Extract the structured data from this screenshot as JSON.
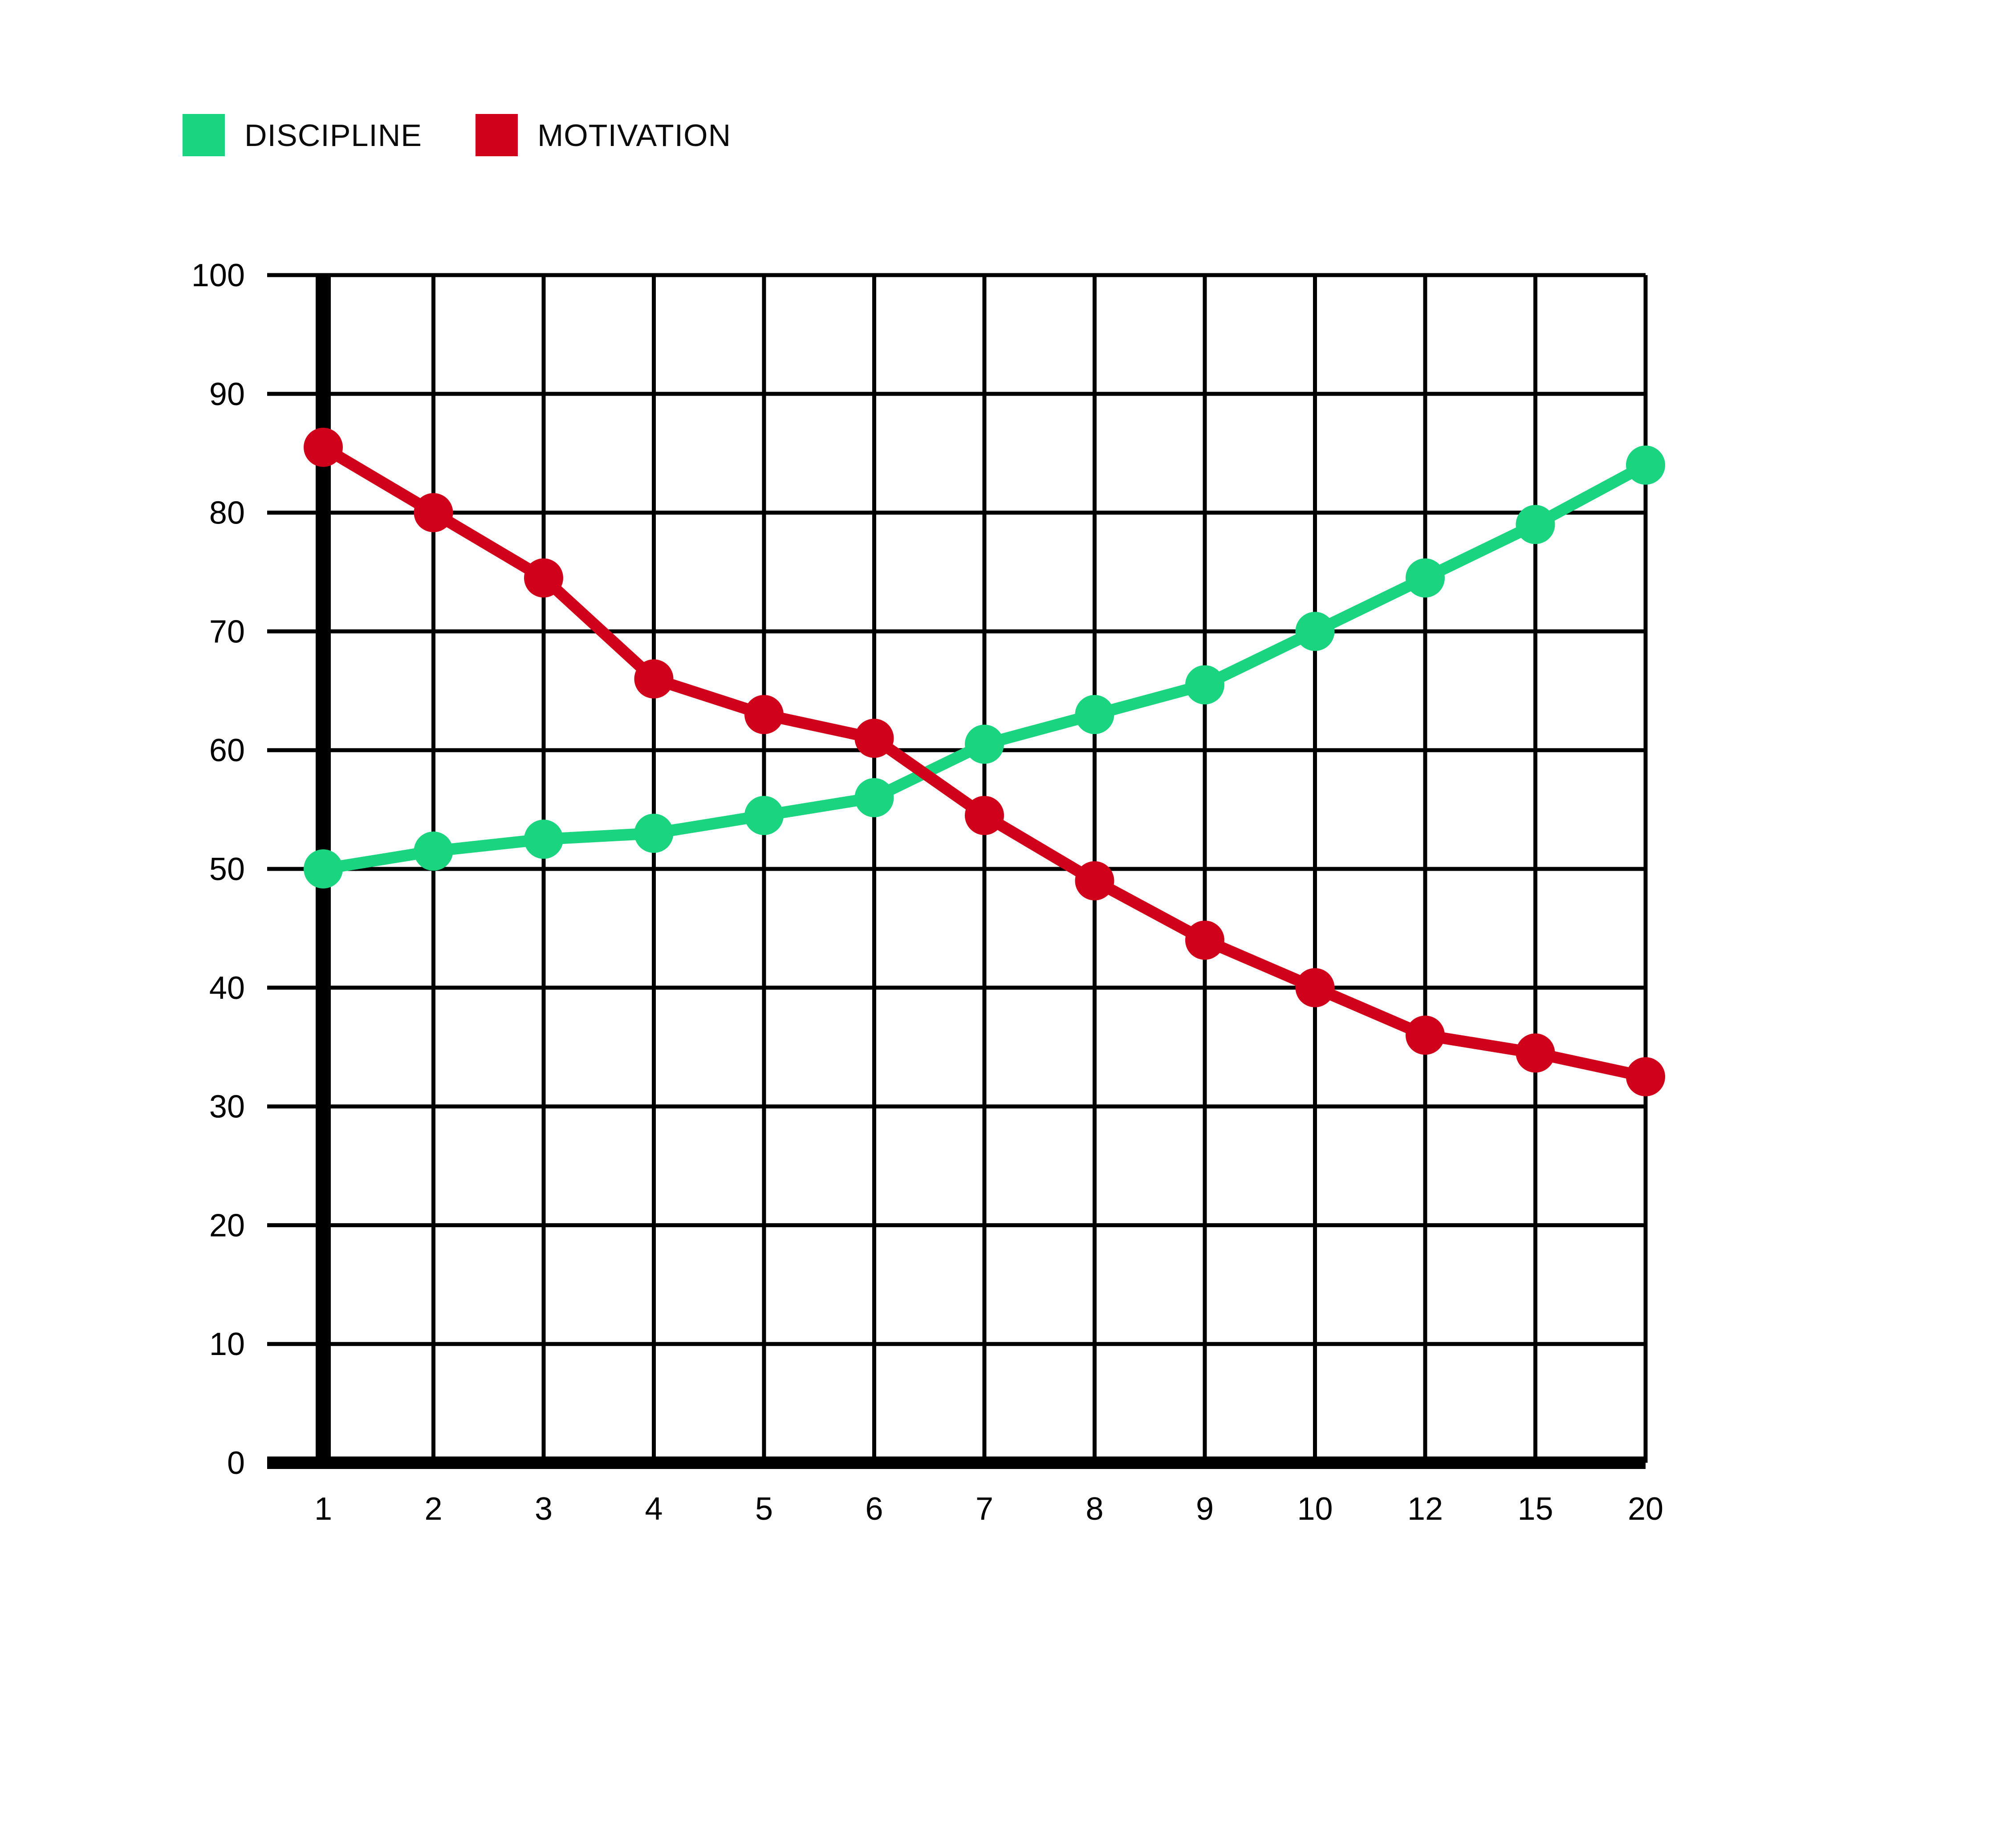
{
  "chart_data": {
    "type": "line",
    "title": "",
    "xlabel": "",
    "ylabel": "",
    "categories": [
      "1",
      "2",
      "3",
      "4",
      "5",
      "6",
      "7",
      "8",
      "9",
      "10",
      "12",
      "15",
      "20"
    ],
    "series": [
      {
        "name": "DISCIPLINE",
        "color": "#1BD47F",
        "values": [
          50,
          51.5,
          52.5,
          53,
          54.5,
          56,
          60.5,
          63,
          65.5,
          70,
          74.5,
          79,
          84
        ]
      },
      {
        "name": "MOTIVATION",
        "color": "#D0021B",
        "values": [
          85.5,
          80,
          74.5,
          66,
          63,
          61,
          54.5,
          49,
          44,
          40,
          36,
          34.5,
          32.5
        ]
      }
    ],
    "ylim": [
      0,
      100
    ],
    "y_ticks": [
      0,
      10,
      20,
      30,
      40,
      50,
      60,
      70,
      80,
      90,
      100
    ],
    "grid": true,
    "legend_position": "top-left",
    "grid_color": "#000000",
    "axis_color": "#000000",
    "text_color": "#000000",
    "background": "#ffffff"
  }
}
